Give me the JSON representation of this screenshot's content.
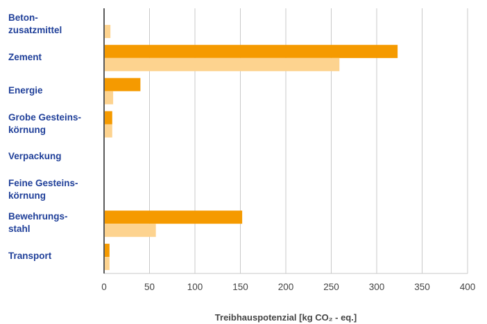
{
  "chart_data": {
    "type": "bar",
    "orientation": "horizontal",
    "categories": [
      "Beton-\nzusatzmittel",
      "Zement",
      " Energie",
      "Grobe Gesteins-\nkörnung",
      "Verpackung",
      "Feine Gesteins-\nkörnung",
      "Bewehrungs-\nstahl",
      "Transport"
    ],
    "series": [
      {
        "color": "#f59a00",
        "values": [
          0,
          323,
          40,
          9,
          0,
          0,
          152,
          6
        ]
      },
      {
        "color": "#fdd38f",
        "values": [
          7,
          259,
          10,
          9,
          0,
          0,
          57,
          6
        ]
      }
    ],
    "xlim": [
      0,
      400
    ],
    "xticks": [
      0,
      50,
      100,
      150,
      200,
      250,
      300,
      350,
      400
    ],
    "xlabel": "Treibhauspotenzial [kg CO₂ - eq.]",
    "grid": true
  }
}
